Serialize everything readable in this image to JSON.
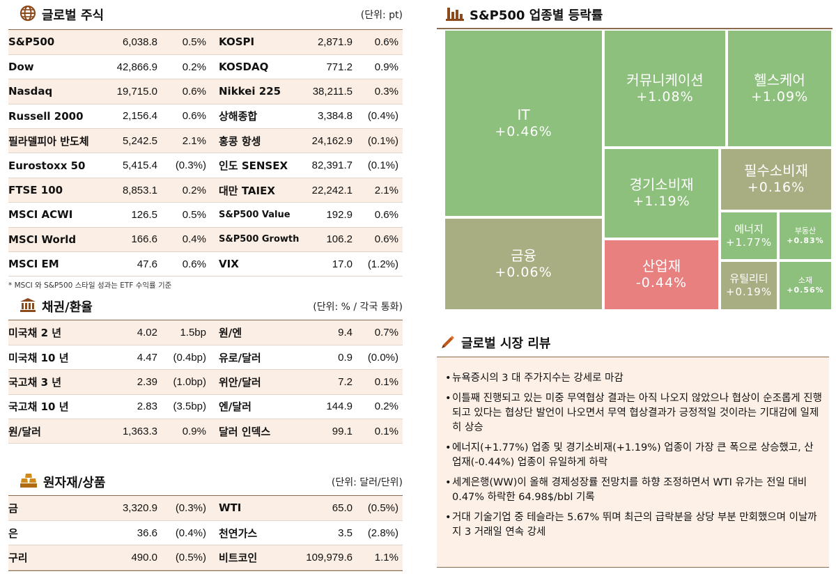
{
  "global_stocks": {
    "title": "글로벌 주식",
    "unit": "(단위: pt)",
    "rows": [
      {
        "name1": "S&P500",
        "val1": "6,038.8",
        "chg1": "0.5%",
        "name2": "KOSPI",
        "val2": "2,871.9",
        "chg2": "0.6%"
      },
      {
        "name1": "Dow",
        "val1": "42,866.9",
        "chg1": "0.2%",
        "name2": "KOSDAQ",
        "val2": "771.2",
        "chg2": "0.9%"
      },
      {
        "name1": "Nasdaq",
        "val1": "19,715.0",
        "chg1": "0.6%",
        "name2": "Nikkei 225",
        "val2": "38,211.5",
        "chg2": "0.3%"
      },
      {
        "name1": "Russell 2000",
        "val1": "2,156.4",
        "chg1": "0.6%",
        "name2": "상해종합",
        "val2": "3,384.8",
        "chg2": "(0.4%)"
      },
      {
        "name1": "필라델피아 반도체",
        "val1": "5,242.5",
        "chg1": "2.1%",
        "name2": "홍콩 항셍",
        "val2": "24,162.9",
        "chg2": "(0.1%)"
      },
      {
        "name1": "Eurostoxx 50",
        "val1": "5,415.4",
        "chg1": "(0.3%)",
        "name2": "인도 SENSEX",
        "val2": "82,391.7",
        "chg2": "(0.1%)"
      },
      {
        "name1": "FTSE 100",
        "val1": "8,853.1",
        "chg1": "0.2%",
        "name2": "대만 TAIEX",
        "val2": "22,242.1",
        "chg2": "2.1%"
      },
      {
        "name1": "MSCI ACWI",
        "val1": "126.5",
        "chg1": "0.5%",
        "name2": "S&P500 Value",
        "val2": "192.9",
        "chg2": "0.6%"
      },
      {
        "name1": "MSCI World",
        "val1": "166.6",
        "chg1": "0.4%",
        "name2": "S&P500 Growth",
        "val2": "106.2",
        "chg2": "0.6%"
      },
      {
        "name1": "MSCI EM",
        "val1": "47.6",
        "chg1": "0.6%",
        "name2": "VIX",
        "val2": "17.0",
        "chg2": "(1.2%)"
      }
    ],
    "footnote": "* MSCI 와 S&P500 스타일 성과는 ETF 수익률 기준"
  },
  "bonds_fx": {
    "title": "채권/환율",
    "unit": "(단위: % / 각국 통화)",
    "rows": [
      {
        "name1": "미국채 2 년",
        "val1": "4.02",
        "chg1": "1.5bp",
        "name2": "원/엔",
        "val2": "9.4",
        "chg2": "0.7%"
      },
      {
        "name1": "미국채 10 년",
        "val1": "4.47",
        "chg1": "(0.4bp)",
        "name2": "유로/달러",
        "val2": "0.9",
        "chg2": "(0.0%)"
      },
      {
        "name1": "국고채 3 년",
        "val1": "2.39",
        "chg1": "(1.0bp)",
        "name2": "위안/달러",
        "val2": "7.2",
        "chg2": "0.1%"
      },
      {
        "name1": "국고채 10 년",
        "val1": "2.83",
        "chg1": "(3.5bp)",
        "name2": "엔/달러",
        "val2": "144.9",
        "chg2": "0.2%"
      },
      {
        "name1": "원/달러",
        "val1": "1,363.3",
        "chg1": "0.9%",
        "name2": "달러 인덱스",
        "val2": "99.1",
        "chg2": "0.1%"
      }
    ]
  },
  "commodities": {
    "title": "원자재/상품",
    "unit": "(단위: 달러/단위)",
    "rows": [
      {
        "name1": "금",
        "val1": "3,320.9",
        "chg1": "(0.3%)",
        "name2": "WTI",
        "val2": "65.0",
        "chg2": "(0.5%)"
      },
      {
        "name1": "은",
        "val1": "36.6",
        "chg1": "(0.4%)",
        "name2": "천연가스",
        "val2": "3.5",
        "chg2": "(2.8%)"
      },
      {
        "name1": "구리",
        "val1": "490.0",
        "chg1": "(0.5%)",
        "name2": "비트코인",
        "val2": "109,979.6",
        "chg2": "1.1%"
      }
    ]
  },
  "sector": {
    "title": "S&P500 업종별 등락률",
    "colors": {
      "up": "#8cc07c",
      "mild": "#a9ae82",
      "down": "#e88080"
    },
    "tiles": [
      {
        "name": "IT",
        "value": "+0.46%",
        "change": 0.46
      },
      {
        "name": "금융",
        "value": "+0.06%",
        "change": 0.06
      },
      {
        "name": "커뮤니케이션",
        "value": "+1.08%",
        "change": 1.08
      },
      {
        "name": "헬스케어",
        "value": "+1.09%",
        "change": 1.09
      },
      {
        "name": "경기소비재",
        "value": "+1.19%",
        "change": 1.19
      },
      {
        "name": "필수소비재",
        "value": "+0.16%",
        "change": 0.16
      },
      {
        "name": "산업재",
        "value": "-0.44%",
        "change": -0.44
      },
      {
        "name": "에너지",
        "value": "+1.77%",
        "change": 1.77
      },
      {
        "name": "부동산",
        "value": "+0.83%",
        "change": 0.83
      },
      {
        "name": "유틸리티",
        "value": "+0.19%",
        "change": 0.19
      },
      {
        "name": "소재",
        "value": "+0.56%",
        "change": 0.56
      }
    ]
  },
  "review": {
    "title": "글로벌 시장 리뷰",
    "bullet": "•",
    "items": [
      "뉴욕증시의 3 대 주가지수는 강세로 마감",
      "이틀째 진행되고 있는 미중 무역협상 결과는 아직 나오지 않았으나 협상이 순조롭게 진행되고 있다는 협상단 발언이 나오면서 무역 협상결과가 긍정적일 것이라는 기대감에 일제히 상승",
      "에너지(+1.77%) 업종 및 경기소비재(+1.19%) 업종이 가장 큰 폭으로 상승했고, 산업재(-0.44%) 업종이 유일하게 하락",
      "세계은행(WW)이 올해 경제성장률 전망치를 하향 조정하면서 WTI 유가는 전일 대비 0.47% 하락한 64.98$/bbl 기록",
      "거대 기술기업 중 테슬라는 5.67% 뛰며 최근의 급락분을 상당 부분 만회했으며 이날까지 3 거래일 연속 강세"
    ]
  },
  "icons": [
    "globe-icon",
    "bank-icon",
    "gold-bars-icon",
    "bar-chart-icon",
    "pen-icon"
  ]
}
